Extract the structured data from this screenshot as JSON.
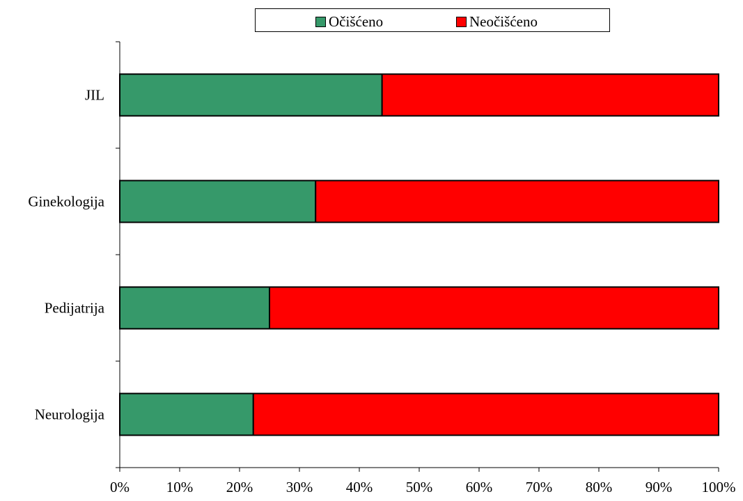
{
  "chart_data": {
    "type": "bar",
    "orientation": "horizontal",
    "stacked": "percent",
    "categories": [
      "JIL",
      "Ginekologija",
      "Pedijatrija",
      "Neurologija"
    ],
    "series": [
      {
        "name": "Očišćeno",
        "color": "#36996A",
        "values": [
          43.8,
          32.7,
          25.0,
          22.3
        ]
      },
      {
        "name": "Neočišćeno",
        "color": "#FF0000",
        "values": [
          56.2,
          67.3,
          75.0,
          77.7
        ]
      }
    ],
    "x_ticks": [
      "0%",
      "10%",
      "20%",
      "30%",
      "40%",
      "50%",
      "60%",
      "70%",
      "80%",
      "90%",
      "100%"
    ],
    "xlim": [
      0,
      100
    ],
    "grid": false,
    "legend_position": "top"
  }
}
